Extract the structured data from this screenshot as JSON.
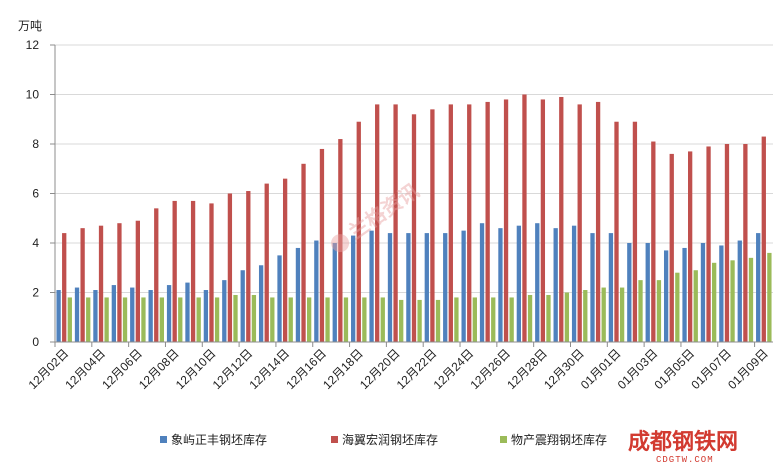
{
  "chart_data": {
    "type": "bar",
    "ylabel": "万吨",
    "ylim": [
      0,
      12
    ],
    "yticks": [
      0,
      2,
      4,
      6,
      8,
      10,
      12
    ],
    "categories": [
      "12月02日",
      "12月03日",
      "12月04日",
      "12月05日",
      "12月06日",
      "12月07日",
      "12月08日",
      "12月09日",
      "12月10日",
      "12月11日",
      "12月12日",
      "12月13日",
      "12月14日",
      "12月15日",
      "12月16日",
      "12月17日",
      "12月18日",
      "12月19日",
      "12月20日",
      "12月21日",
      "12月22日",
      "12月23日",
      "12月24日",
      "12月25日",
      "12月26日",
      "12月27日",
      "12月28日",
      "12月29日",
      "12月30日",
      "12月31日",
      "01月01日",
      "01月02日",
      "01月03日",
      "01月04日",
      "01月05日",
      "01月06日",
      "01月07日",
      "01月08日",
      "01月09日"
    ],
    "tick_labels": [
      "12月02日",
      "",
      "12月04日",
      "",
      "12月06日",
      "",
      "12月08日",
      "",
      "12月10日",
      "",
      "12月12日",
      "",
      "12月14日",
      "",
      "12月16日",
      "",
      "12月18日",
      "",
      "12月20日",
      "",
      "12月22日",
      "",
      "12月24日",
      "",
      "12月26日",
      "",
      "12月28日",
      "",
      "12月30日",
      "",
      "01月01日",
      "",
      "01月03日",
      "",
      "01月05日",
      "",
      "01月07日",
      "",
      "01月09日"
    ],
    "series": [
      {
        "name": "象屿正丰钢坯库存",
        "color": "#4f81bd",
        "values": [
          2.1,
          2.2,
          2.1,
          2.3,
          2.2,
          2.1,
          2.3,
          2.4,
          2.1,
          2.5,
          2.9,
          3.1,
          3.5,
          3.8,
          4.1,
          4.0,
          4.3,
          4.5,
          4.4,
          4.4,
          4.4,
          4.4,
          4.5,
          4.8,
          4.6,
          4.7,
          4.8,
          4.6,
          4.7,
          4.4,
          4.4,
          4.0,
          4.0,
          3.7,
          3.8,
          4.0,
          3.9,
          4.1,
          4.4
        ]
      },
      {
        "name": "海翼宏润钢坯库存",
        "color": "#c0504d",
        "values": [
          4.4,
          4.6,
          4.7,
          4.8,
          4.9,
          5.4,
          5.7,
          5.7,
          5.6,
          6.0,
          6.1,
          6.4,
          6.6,
          7.2,
          7.8,
          8.2,
          8.9,
          9.6,
          9.6,
          9.2,
          9.4,
          9.6,
          9.6,
          9.7,
          9.8,
          10.0,
          9.8,
          9.9,
          9.6,
          9.7,
          8.9,
          8.9,
          8.1,
          7.6,
          7.7,
          7.9,
          8.0,
          8.0,
          8.3
        ]
      },
      {
        "name": "物产震翔钢坯库存",
        "color": "#9bbb59",
        "values": [
          1.8,
          1.8,
          1.8,
          1.8,
          1.8,
          1.8,
          1.8,
          1.8,
          1.8,
          1.9,
          1.9,
          1.8,
          1.8,
          1.8,
          1.8,
          1.8,
          1.8,
          1.8,
          1.7,
          1.7,
          1.7,
          1.8,
          1.8,
          1.8,
          1.8,
          1.9,
          1.9,
          2.0,
          2.1,
          2.2,
          2.2,
          2.5,
          2.5,
          2.8,
          2.9,
          3.2,
          3.3,
          3.4,
          3.6
        ]
      }
    ],
    "grid": "y",
    "legend": "bottom"
  },
  "watermark": {
    "center_text": "兰格资讯",
    "brand_text": "成都钢铁网",
    "brand_sub": "CDGTW.COM"
  }
}
